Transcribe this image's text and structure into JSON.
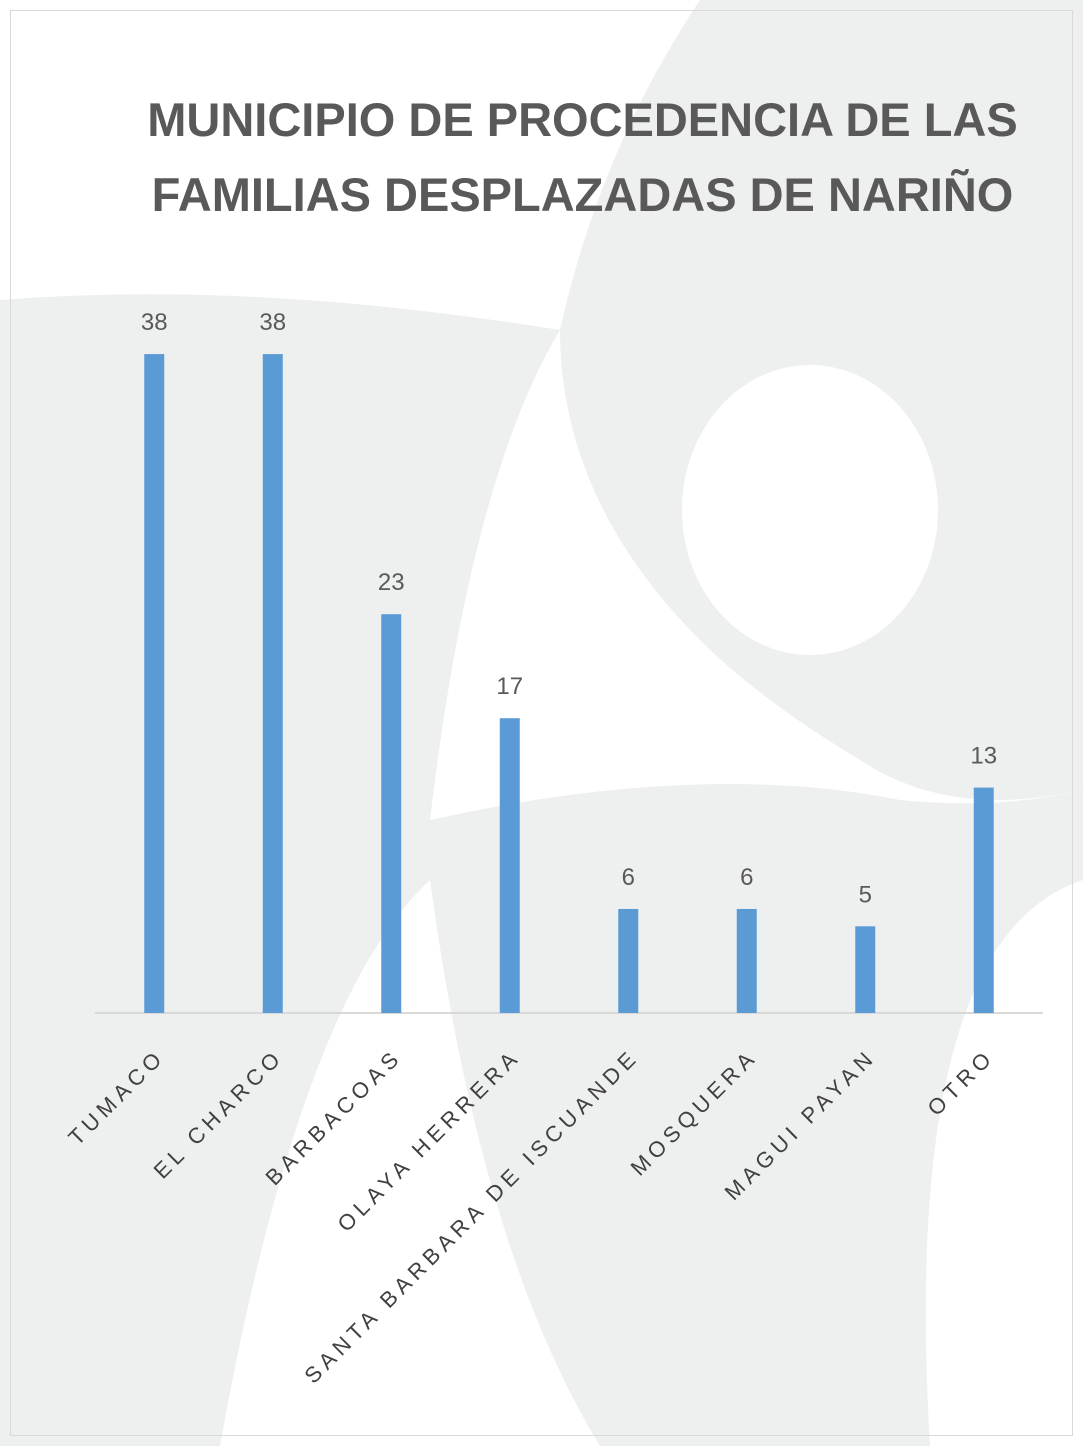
{
  "chart_data": {
    "type": "bar",
    "title": "MUNICIPIO DE PROCEDENCIA DE LAS FAMILIAS DESPLAZADAS DE NARIÑO",
    "categories": [
      "TUMACO",
      "EL CHARCO",
      "BARBACOAS",
      "OLAYA HERRERA",
      "SANTA BARBARA DE ISCUANDE",
      "MOSQUERA",
      "MAGUI PAYAN",
      "OTRO"
    ],
    "values": [
      38,
      38,
      23,
      17,
      6,
      6,
      5,
      13
    ],
    "color": "#5b9bd5"
  }
}
